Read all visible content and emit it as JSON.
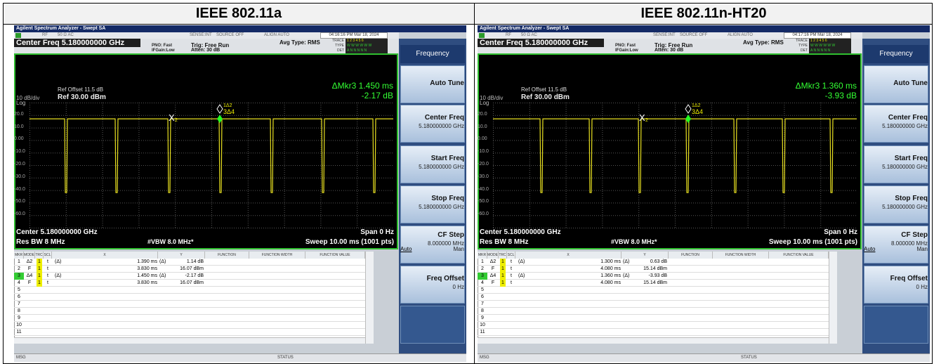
{
  "header": {
    "cells": [
      "IEEE 802.11a",
      "IEEE 802.11n-HT20"
    ]
  },
  "panels": [
    {
      "app_title": "Agilent Spectrum Analyzer - Swept SA",
      "status": {
        "rf": "RF",
        "input": "50 Ω  AC",
        "sense": "SENSE:INT",
        "source": "SOURCE OFF",
        "align": "ALIGN AUTO",
        "time": "04:16:16 PM Mar 18, 2024"
      },
      "center_freq": "Center Freq 5.180000000 GHz",
      "pno": "PNO: Fast",
      "ifgain": "IFGain:Low",
      "trig": "Trig: Free Run",
      "atten": "Atten: 30 dB",
      "avg": "Avg Type: RMS",
      "trace_rows": [
        {
          "label": "TRACE",
          "value": "1 2 3 4 5 6"
        },
        {
          "label": "TYPE",
          "value": "W W W W W W"
        },
        {
          "label": "DET",
          "value": "A N N N N N"
        }
      ],
      "ref_offset": "Ref Offset 11.5 dB",
      "ref": "Ref 30.00 dBm",
      "scale": "10 dB/div",
      "log": "Log",
      "mkr_readout": "ΔMkr3 1.450 ms",
      "mkr_value": "-2.17 dB",
      "y_labels": [
        "20.0",
        "10.0",
        "0.00",
        "-10.0",
        "-20.0",
        "-30.0",
        "-40.0",
        "-50.0",
        "-60.0"
      ],
      "marker_x": "X",
      "marker_x_num": "2",
      "marker_d_top": "1Δ2",
      "marker_d": "3Δ4",
      "center": "Center 5.180000000 GHz",
      "span": "Span 0 Hz",
      "rbw": "Res BW 8 MHz",
      "vbw": "#VBW 8.0 MHz*",
      "sweep": "Sweep  10.00 ms (1001 pts)",
      "table_header": [
        "MKR",
        "MODE",
        "TRC",
        "SCL",
        "X",
        "Y",
        "FUNCTION",
        "FUNCTION WIDTH",
        "FUNCTION VALUE"
      ],
      "rows": [
        {
          "mkr": "1",
          "mode": "Δ2",
          "trc": "1",
          "scl": "t",
          "x_ref": "(Δ)",
          "x": "1.390 ms",
          "y_ref": "(Δ)",
          "y": "1.14 dB"
        },
        {
          "mkr": "2",
          "mode": "F",
          "trc": "1",
          "scl": "t",
          "x": "3.830 ms",
          "y": "16.07 dBm"
        },
        {
          "mkr": "3",
          "mode": "Δ4",
          "trc": "1",
          "scl": "t",
          "x_ref": "(Δ)",
          "x": "1.450 ms",
          "y_ref": "(Δ)",
          "y": "-2.17 dB"
        },
        {
          "mkr": "4",
          "mode": "F",
          "trc": "1",
          "scl": "t",
          "x": "3.830 ms",
          "y": "16.07 dBm"
        },
        {
          "mkr": "5"
        },
        {
          "mkr": "6"
        },
        {
          "mkr": "7"
        },
        {
          "mkr": "8"
        },
        {
          "mkr": "9"
        },
        {
          "mkr": "10"
        },
        {
          "mkr": "11"
        }
      ],
      "msg": "MSG",
      "status_label": "STATUS",
      "softkeys": {
        "menu": "Frequency",
        "keys": [
          {
            "label": "Auto Tune"
          },
          {
            "label": "Center Freq",
            "value": "5.180000000 GHz"
          },
          {
            "label": "Start Freq",
            "value": "5.180000000 GHz"
          },
          {
            "label": "Stop Freq",
            "value": "5.180000000 GHz"
          },
          {
            "label": "CF Step",
            "value": "8.000000 MHz",
            "left": "Auto",
            "right": "Man"
          },
          {
            "label": "Freq Offset",
            "value": "0 Hz"
          }
        ]
      }
    },
    {
      "app_title": "Agilent Spectrum Analyzer - Swept SA",
      "status": {
        "rf": "RF",
        "input": "50 Ω  AC",
        "sense": "SENSE:INT",
        "source": "SOURCE OFF",
        "align": "ALIGN AUTO",
        "time": "04:17:16 PM Mar 18, 2024"
      },
      "center_freq": "Center Freq 5.180000000 GHz",
      "pno": "PNO: Fast",
      "ifgain": "IFGain:Low",
      "trig": "Trig: Free Run",
      "atten": "Atten: 30 dB",
      "avg": "Avg Type: RMS",
      "trace_rows": [
        {
          "label": "TRACE",
          "value": "1 2 3 4 5 6"
        },
        {
          "label": "TYPE",
          "value": "W W W W W W"
        },
        {
          "label": "DET",
          "value": "A N N N N N"
        }
      ],
      "ref_offset": "Ref Offset 11.5 dB",
      "ref": "Ref 30.00 dBm",
      "scale": "10 dB/div",
      "log": "Log",
      "mkr_readout": "ΔMkr3 1.360 ms",
      "mkr_value": "-3.93 dB",
      "y_labels": [
        "20.0",
        "10.0",
        "0.00",
        "-10.0",
        "-20.0",
        "-30.0",
        "-40.0",
        "-50.0",
        "-60.0"
      ],
      "marker_x": "X",
      "marker_x_num": "2",
      "marker_d_top": "1Δ2",
      "marker_d": "3Δ4",
      "center": "Center 5.180000000 GHz",
      "span": "Span 0 Hz",
      "rbw": "Res BW 8 MHz",
      "vbw": "#VBW 8.0 MHz*",
      "sweep": "Sweep  10.00 ms (1001 pts)",
      "table_header": [
        "MKR",
        "MODE",
        "TRC",
        "SCL",
        "X",
        "Y",
        "FUNCTION",
        "FUNCTION WIDTH",
        "FUNCTION VALUE"
      ],
      "rows": [
        {
          "mkr": "1",
          "mode": "Δ2",
          "trc": "1",
          "scl": "t",
          "x_ref": "(Δ)",
          "x": "1.300 ms",
          "y_ref": "(Δ)",
          "y": "0.63 dB"
        },
        {
          "mkr": "2",
          "mode": "F",
          "trc": "1",
          "scl": "t",
          "x": "4.080 ms",
          "y": "15.14 dBm"
        },
        {
          "mkr": "3",
          "mode": "Δ4",
          "trc": "1",
          "scl": "t",
          "x_ref": "(Δ)",
          "x": "1.360 ms",
          "y_ref": "(Δ)",
          "y": "-3.93 dB"
        },
        {
          "mkr": "4",
          "mode": "F",
          "trc": "1",
          "scl": "t",
          "x": "4.080 ms",
          "y": "15.14 dBm"
        },
        {
          "mkr": "5"
        },
        {
          "mkr": "6"
        },
        {
          "mkr": "7"
        },
        {
          "mkr": "8"
        },
        {
          "mkr": "9"
        },
        {
          "mkr": "10"
        },
        {
          "mkr": "11"
        }
      ],
      "msg": "MSG",
      "status_label": "STATUS",
      "softkeys": {
        "menu": "Frequency",
        "keys": [
          {
            "label": "Auto Tune"
          },
          {
            "label": "Center Freq",
            "value": "5.180000000 GHz"
          },
          {
            "label": "Start Freq",
            "value": "5.180000000 GHz"
          },
          {
            "label": "Stop Freq",
            "value": "5.180000000 GHz"
          },
          {
            "label": "CF Step",
            "value": "8.000000 MHz",
            "left": "Auto",
            "right": "Man"
          },
          {
            "label": "Freq Offset",
            "value": "0 Hz"
          }
        ]
      }
    }
  ]
}
